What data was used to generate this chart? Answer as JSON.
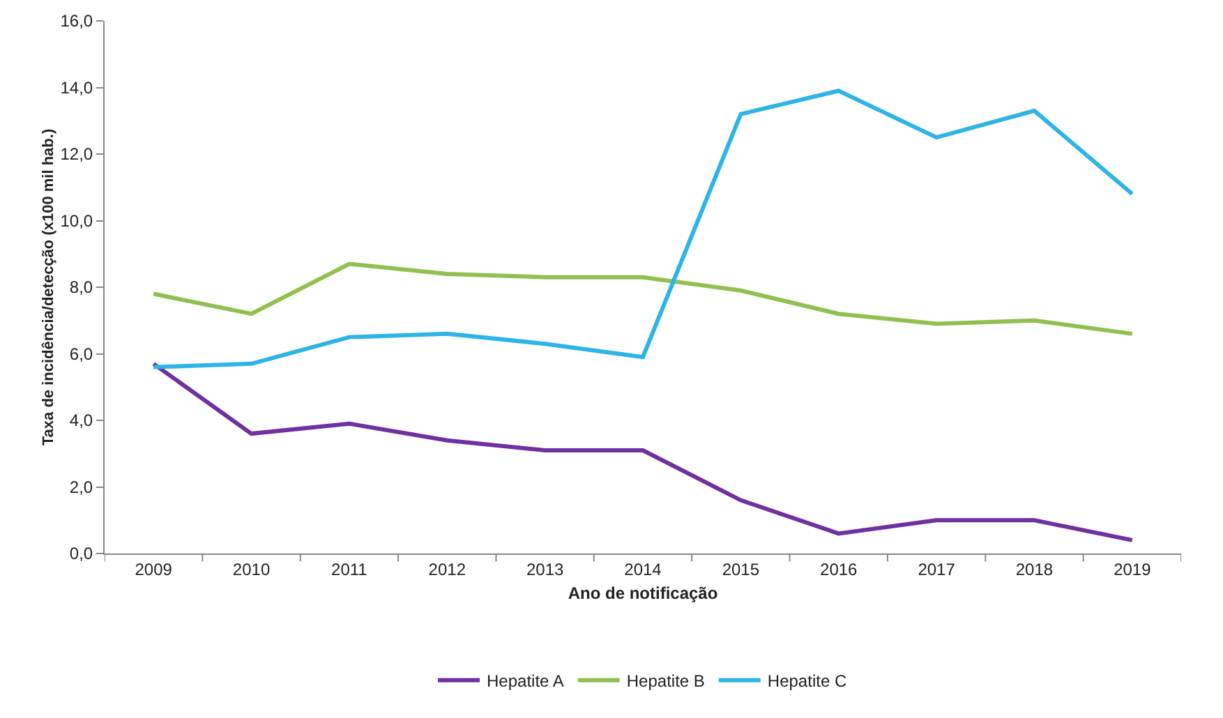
{
  "chart_data": {
    "type": "line",
    "xlabel": "Ano de notificação",
    "ylabel": "Taxa de incidência/detecção (x100 mil hab.)",
    "categories": [
      "2009",
      "2010",
      "2011",
      "2012",
      "2013",
      "2014",
      "2015",
      "2016",
      "2017",
      "2018",
      "2019"
    ],
    "series": [
      {
        "name": "Hepatite A",
        "color": "#7030a0",
        "values": [
          5.7,
          3.6,
          3.9,
          3.4,
          3.1,
          3.1,
          1.6,
          0.6,
          1.0,
          1.0,
          0.4
        ]
      },
      {
        "name": "Hepatite B",
        "color": "#92c050",
        "values": [
          7.8,
          7.2,
          8.7,
          8.4,
          8.3,
          8.3,
          7.9,
          7.2,
          6.9,
          7.0,
          6.6
        ]
      },
      {
        "name": "Hepatite C",
        "color": "#2eb4e6",
        "values": [
          5.6,
          5.7,
          6.5,
          6.6,
          6.3,
          5.9,
          13.2,
          13.9,
          12.5,
          13.3,
          10.8
        ]
      }
    ],
    "ylim": [
      0,
      16
    ],
    "yticks": [
      {
        "value": 0,
        "label": "0,0"
      },
      {
        "value": 2,
        "label": "2,0"
      },
      {
        "value": 4,
        "label": "4,0"
      },
      {
        "value": 6,
        "label": "6,0"
      },
      {
        "value": 8,
        "label": "8,0"
      },
      {
        "value": 10,
        "label": "10,0"
      },
      {
        "value": 12,
        "label": "12,0"
      },
      {
        "value": 14,
        "label": "14,0"
      },
      {
        "value": 16,
        "label": "16,0"
      }
    ],
    "grid": false,
    "legend": "bottom",
    "marker": "none",
    "line_style": "solid"
  }
}
